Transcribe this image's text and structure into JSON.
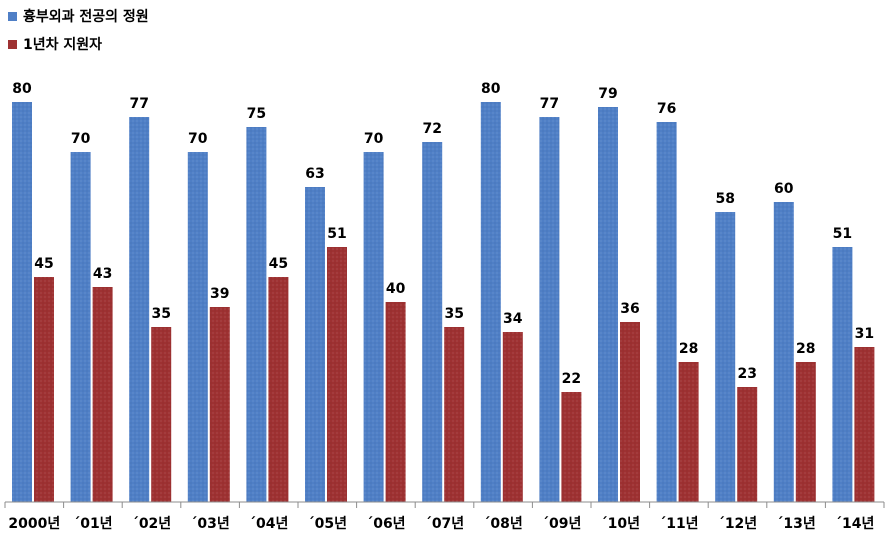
{
  "chart_data": {
    "type": "bar",
    "categories": [
      "2000년",
      "´01년",
      "´02년",
      "´03년",
      "´04년",
      "´05년",
      "´06년",
      "´07년",
      "´08년",
      "´09년",
      "´10년",
      "´11년",
      "´12년",
      "´13년",
      "´14년"
    ],
    "series": [
      {
        "name": "흉부외과 전공의 정원",
        "color": "#4f7fc6",
        "values": [
          80,
          70,
          77,
          70,
          75,
          63,
          70,
          72,
          80,
          77,
          79,
          76,
          58,
          60,
          51
        ]
      },
      {
        "name": "1년차 지원자",
        "color": "#9e3132",
        "values": [
          45,
          43,
          35,
          39,
          45,
          51,
          40,
          35,
          34,
          22,
          36,
          28,
          23,
          28,
          31
        ]
      }
    ],
    "ylim": [
      0,
      80
    ],
    "grid": false,
    "legend_position": "top-left",
    "data_labels": true
  }
}
